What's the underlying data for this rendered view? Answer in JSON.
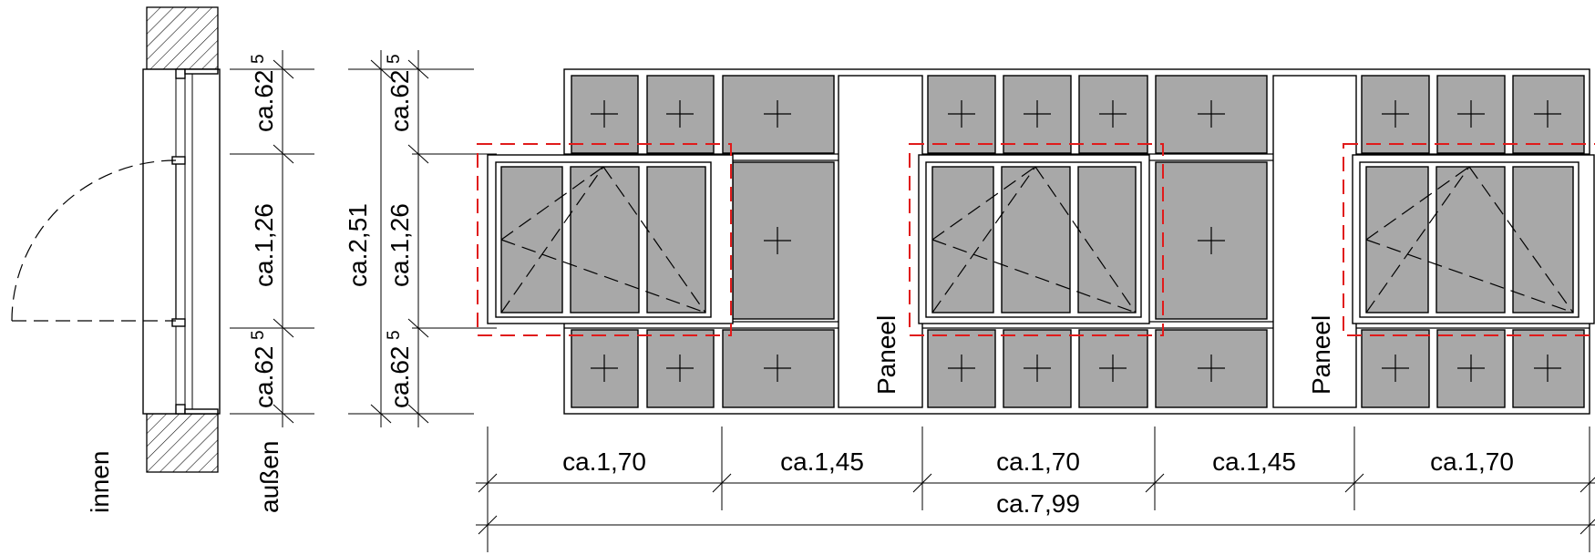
{
  "labels": {
    "innen": "innen",
    "aussen": "außen",
    "paneel": "Paneel"
  },
  "section_dims": {
    "top": "ca.62",
    "top_sup": "5",
    "mid": "ca.1,26",
    "bottom": "ca.62",
    "bottom_sup": "5"
  },
  "elevation_dims": {
    "total": "ca.2,51",
    "top": "ca.62",
    "top_sup": "5",
    "mid": "ca.1,26",
    "bottom": "ca.62",
    "bottom_sup": "5"
  },
  "bottom_dims": {
    "segments": [
      "ca.1,70",
      "ca.1,45",
      "ca.1,70",
      "ca.1,45",
      "ca.1,70"
    ],
    "total": "ca.7,99"
  },
  "colors": {
    "glass": "#a8a8a8",
    "highlight": "#e01b1b"
  }
}
